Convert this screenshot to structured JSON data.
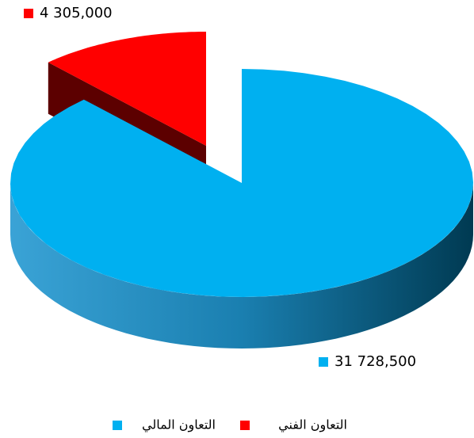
{
  "chart_data": {
    "type": "pie",
    "categories": [
      "التعاون المالي",
      "التعاون الفني"
    ],
    "values": [
      31728500,
      4305000
    ],
    "value_labels": [
      "31 728,500",
      "4 305,000"
    ],
    "colors": [
      "#00b0f0",
      "#ff0000"
    ],
    "legend": "bottom"
  }
}
